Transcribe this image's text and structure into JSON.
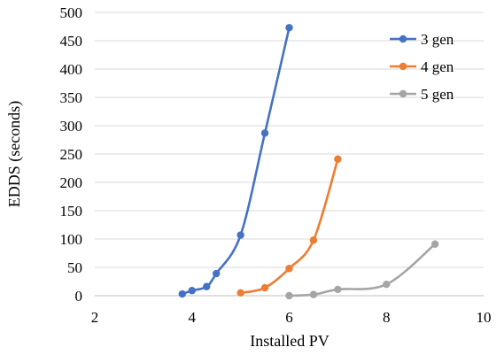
{
  "chart_data": {
    "type": "line",
    "title": "",
    "xlabel": "Installed PV",
    "ylabel": "EDDS (seconds)",
    "xlim": [
      2,
      10
    ],
    "ylim": [
      0,
      500
    ],
    "xticks": [
      2,
      4,
      6,
      8,
      10
    ],
    "yticks": [
      0,
      50,
      100,
      150,
      200,
      250,
      300,
      350,
      400,
      450,
      500
    ],
    "grid": "horizontal",
    "legend_position": "top-right",
    "smooth": true,
    "series": [
      {
        "name": "3 gen",
        "color": "#4472C4",
        "points": [
          [
            3.8,
            3
          ],
          [
            4.0,
            9
          ],
          [
            4.3,
            16
          ],
          [
            4.5,
            39
          ],
          [
            5.0,
            107
          ],
          [
            5.5,
            287
          ],
          [
            6.0,
            473
          ]
        ]
      },
      {
        "name": "4 gen",
        "color": "#ED7D31",
        "points": [
          [
            5.0,
            5
          ],
          [
            5.5,
            14
          ],
          [
            6.0,
            48
          ],
          [
            6.5,
            98
          ],
          [
            7.0,
            241
          ]
        ]
      },
      {
        "name": "5 gen",
        "color": "#A5A5A5",
        "points": [
          [
            6.0,
            0
          ],
          [
            6.5,
            2
          ],
          [
            7.0,
            11
          ],
          [
            8.0,
            20
          ],
          [
            9.0,
            91
          ]
        ]
      }
    ]
  }
}
